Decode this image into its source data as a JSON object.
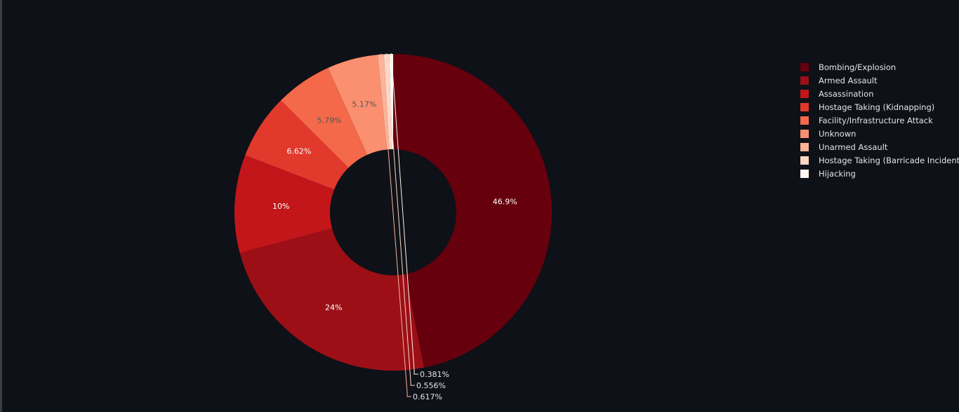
{
  "chart_data": {
    "type": "pie",
    "hole": true,
    "legend_position": "top-right",
    "slices": [
      {
        "label": "Bombing/Explosion",
        "value": 46.9,
        "text": "46.9%",
        "color": "#67000d"
      },
      {
        "label": "Armed Assault",
        "value": 24,
        "text": "24%",
        "color": "#9c0f16"
      },
      {
        "label": "Assassination",
        "value": 10,
        "text": "10%",
        "color": "#c2161b"
      },
      {
        "label": "Hostage Taking (Kidnapping)",
        "value": 6.62,
        "text": "6.62%",
        "color": "#e1392c"
      },
      {
        "label": "Facility/Infrastructure Attack",
        "value": 5.79,
        "text": "5.79%",
        "color": "#f4694a"
      },
      {
        "label": "Unknown",
        "value": 5.17,
        "text": "5.17%",
        "color": "#fb9070"
      },
      {
        "label": "Unarmed Assault",
        "value": 0.617,
        "text": "0.617%",
        "color": "#fcb398"
      },
      {
        "label": "Hostage Taking (Barricade Incident)",
        "value": 0.556,
        "text": "0.556%",
        "color": "#fdd7c6"
      },
      {
        "label": "Hijacking",
        "value": 0.381,
        "text": "0.381%",
        "color": "#fff5f0"
      }
    ]
  }
}
